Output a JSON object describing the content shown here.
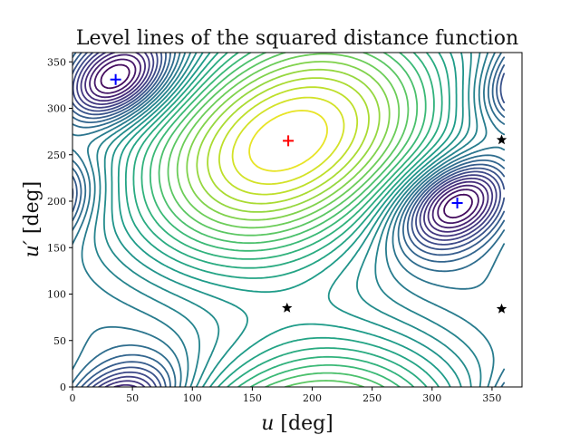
{
  "chart_data": {
    "type": "contour",
    "title": "Level lines of the squared distance function",
    "xlabel_var": "u",
    "xlabel_unit": " [deg]",
    "ylabel_var": "u′",
    "ylabel_unit": " [deg]",
    "xlim": [
      0,
      375
    ],
    "ylim": [
      0,
      360
    ],
    "xticks": [
      0,
      50,
      100,
      150,
      200,
      250,
      300,
      350
    ],
    "yticks": [
      0,
      50,
      100,
      150,
      200,
      250,
      300,
      350
    ],
    "colormap": "viridis",
    "grid": false,
    "maximum": {
      "u": 180,
      "u_prime": 265,
      "color": "#ff0000"
    },
    "minima": [
      {
        "u": 36,
        "u_prime": 331,
        "color": "#0000ff"
      },
      {
        "u": 321,
        "u_prime": 198,
        "color": "#0000ff"
      }
    ],
    "saddles": [
      {
        "u": 179,
        "u_prime": 85,
        "color": "#000000"
      },
      {
        "u": 358,
        "u_prime": 84,
        "color": "#000000"
      },
      {
        "u": 358,
        "u_prime": 266,
        "color": "#000000"
      }
    ]
  }
}
